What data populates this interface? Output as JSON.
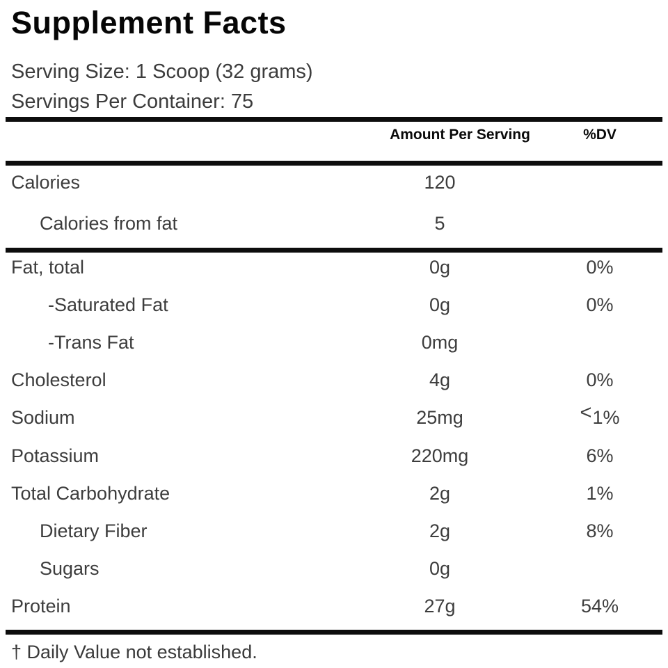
{
  "title": "Supplement Facts",
  "serving_info": {
    "serving_size": "Serving Size: 1 Scoop (32 grams)",
    "servings_per_container": "Servings Per Container: 75"
  },
  "table": {
    "headers": {
      "amount": "Amount Per Serving",
      "dv": "%DV"
    },
    "calories_rows": [
      {
        "label": "Calories",
        "amount": "120",
        "dv": ""
      },
      {
        "label": "Calories from fat",
        "amount": "5",
        "dv": ""
      }
    ],
    "nutrients": [
      {
        "label": "Fat, total",
        "amount": "0g",
        "dv": "0%"
      },
      {
        "label": "-Saturated Fat",
        "amount": "0g",
        "dv": "0%"
      },
      {
        "label": "-Trans Fat",
        "amount": "0mg",
        "dv": ""
      },
      {
        "label": "Cholesterol",
        "amount": "4g",
        "dv": "0%"
      },
      {
        "label": "Sodium",
        "amount": "25mg",
        "dv_lt": "<",
        "dv_num": "1%"
      },
      {
        "label": "Potassium",
        "amount": "220mg",
        "dv": "6%"
      },
      {
        "label": "Total Carbohydrate",
        "amount": "2g",
        "dv": "1%"
      },
      {
        "label": "Dietary Fiber",
        "amount": "2g",
        "dv": "8%"
      },
      {
        "label": "Sugars",
        "amount": "0g",
        "dv": ""
      },
      {
        "label": "Protein",
        "amount": "27g",
        "dv": "54%"
      }
    ]
  },
  "footnote": "† Daily Value not established.",
  "colors": {
    "background": "#ffffff",
    "title_text": "#060606",
    "body_text": "#3d3d3d",
    "header_text": "#0a0a0a",
    "rule": "#0d0d0d"
  }
}
